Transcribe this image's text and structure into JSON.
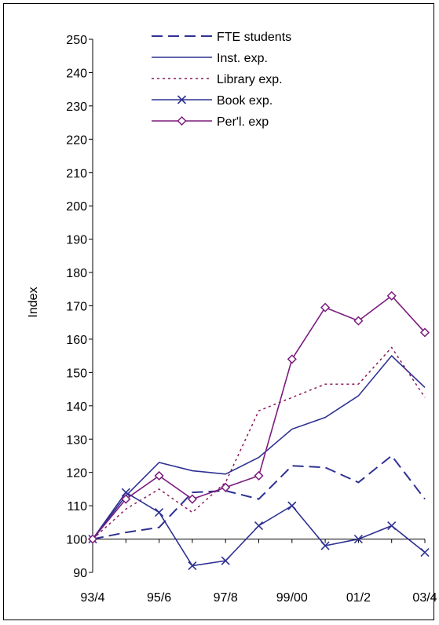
{
  "chart_data": {
    "type": "line",
    "ylabel": "Index",
    "xlabel": "",
    "ylim": [
      90,
      250
    ],
    "yticks": [
      90,
      100,
      110,
      120,
      130,
      140,
      150,
      160,
      170,
      180,
      190,
      200,
      210,
      220,
      230,
      240,
      250
    ],
    "x_categories": [
      "93/4",
      "94/5",
      "95/6",
      "96/7",
      "97/8",
      "98/9",
      "99/00",
      "00/1",
      "01/2",
      "02/3",
      "03/4"
    ],
    "x_tick_labels": [
      "93/4",
      "95/6",
      "97/8",
      "99/00",
      "01/2",
      "03/4"
    ],
    "legend_position": "top-center",
    "grid": false,
    "series": [
      {
        "name": "FTE students",
        "color": "#2e3192",
        "dash": "long-dash",
        "marker": "none",
        "values": [
          100,
          102,
          103.5,
          114,
          114.5,
          112,
          122,
          121.5,
          117,
          125,
          112
        ]
      },
      {
        "name": "Inst. exp.",
        "color": "#2e3192",
        "dash": "solid",
        "marker": "none",
        "values": [
          100,
          113,
          123,
          120.5,
          119.5,
          124.5,
          133,
          136.5,
          143,
          155,
          145.5
        ]
      },
      {
        "name": "Library exp.",
        "color": "#8b1a5c",
        "dash": "dotted",
        "marker": "none",
        "values": [
          100,
          109,
          115,
          108,
          117,
          138.5,
          142.5,
          146.5,
          146.5,
          157.5,
          142.5
        ]
      },
      {
        "name": "Book exp.",
        "color": "#2e3192",
        "dash": "solid",
        "marker": "x",
        "values": [
          100,
          114,
          108,
          92,
          93.5,
          104,
          110,
          98,
          100,
          104,
          96
        ]
      },
      {
        "name": "Per'l. exp",
        "color": "#7b1c7e",
        "dash": "solid",
        "marker": "diamond",
        "values": [
          100,
          112,
          119,
          112,
          115.5,
          119,
          154,
          169.5,
          165.5,
          173,
          162
        ]
      }
    ]
  }
}
